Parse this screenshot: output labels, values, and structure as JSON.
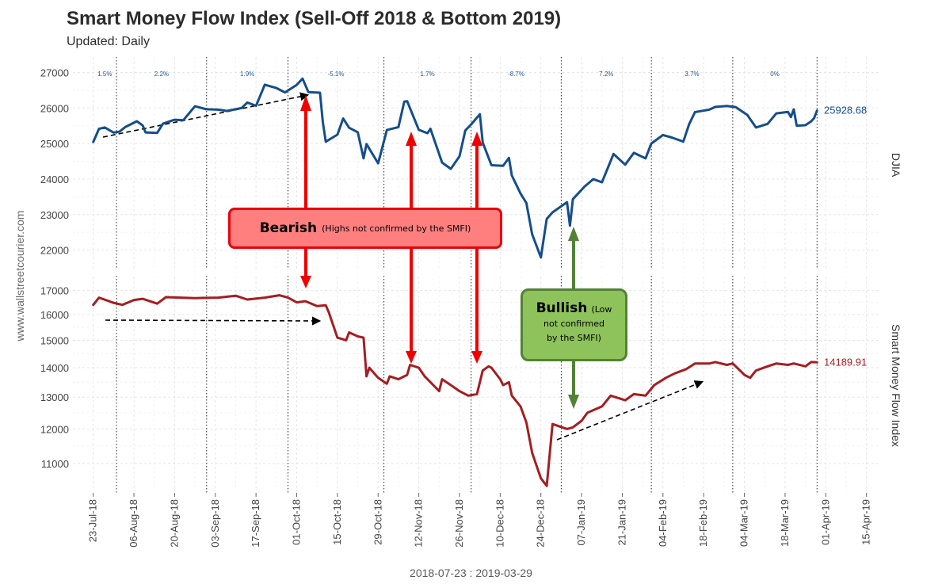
{
  "title": "Smart Money Flow Index (Sell-Off 2018 & Bottom 2019)",
  "subtitle": "Updated: Daily",
  "watermark": "www.wallstreetcourier.com",
  "range_label": "2018-07-23 : 2019-03-29",
  "callouts": {
    "bearish": {
      "title": "Bearish",
      "text": "(Highs not confirmed by the SMFI)"
    },
    "bullish": {
      "title": "Bullish",
      "text_line1": "(Low",
      "text_line2": "not confirmed",
      "text_line3": "by the SMFI)"
    }
  },
  "colors": {
    "djia": "#154e8a",
    "smfi": "#a41e22",
    "bearish_arrow": "#f20000",
    "bullish_arrow": "#538135"
  },
  "chart_data": [
    {
      "type": "line",
      "panel": "DJIA",
      "strip_label": "DJIA",
      "series": [
        {
          "name": "DJIA",
          "color": "#154e8a"
        }
      ],
      "ylim": [
        21500,
        27300
      ],
      "yticks": [
        "22000",
        "23000",
        "24000",
        "25000",
        "26000",
        "27000"
      ],
      "last_value_label": "25928.68",
      "points": [
        [
          "2018-07-23",
          25044
        ],
        [
          "2018-07-25",
          25414
        ],
        [
          "2018-07-27",
          25451
        ],
        [
          "2018-07-30",
          25307
        ],
        [
          "2018-08-01",
          25333
        ],
        [
          "2018-08-03",
          25462
        ],
        [
          "2018-08-07",
          25628
        ],
        [
          "2018-08-09",
          25509
        ],
        [
          "2018-08-10",
          25313
        ],
        [
          "2018-08-14",
          25299
        ],
        [
          "2018-08-16",
          25558
        ],
        [
          "2018-08-20",
          25669
        ],
        [
          "2018-08-23",
          25656
        ],
        [
          "2018-08-27",
          26049
        ],
        [
          "2018-08-31",
          25964
        ],
        [
          "2018-09-04",
          25952
        ],
        [
          "2018-09-07",
          25916
        ],
        [
          "2018-09-12",
          25998
        ],
        [
          "2018-09-14",
          26154
        ],
        [
          "2018-09-17",
          26062
        ],
        [
          "2018-09-20",
          26656
        ],
        [
          "2018-09-24",
          26562
        ],
        [
          "2018-09-27",
          26439
        ],
        [
          "2018-10-01",
          26651
        ],
        [
          "2018-10-03",
          26828
        ],
        [
          "2018-10-05",
          26447
        ],
        [
          "2018-10-09",
          26430
        ],
        [
          "2018-10-10",
          25599
        ],
        [
          "2018-10-11",
          25052
        ],
        [
          "2018-10-15",
          25250
        ],
        [
          "2018-10-17",
          25706
        ],
        [
          "2018-10-19",
          25444
        ],
        [
          "2018-10-22",
          25317
        ],
        [
          "2018-10-24",
          24583
        ],
        [
          "2018-10-25",
          24984
        ],
        [
          "2018-10-29",
          24443
        ],
        [
          "2018-11-01",
          25380
        ],
        [
          "2018-11-05",
          25461
        ],
        [
          "2018-11-07",
          26180
        ],
        [
          "2018-11-08",
          26191
        ],
        [
          "2018-11-12",
          25387
        ],
        [
          "2018-11-15",
          25290
        ],
        [
          "2018-11-16",
          25414
        ],
        [
          "2018-11-20",
          24465
        ],
        [
          "2018-11-23",
          24286
        ],
        [
          "2018-11-26",
          24640
        ],
        [
          "2018-11-28",
          25366
        ],
        [
          "2018-11-30",
          25538
        ],
        [
          "2018-12-03",
          25826
        ],
        [
          "2018-12-04",
          25027
        ],
        [
          "2018-12-07",
          24389
        ],
        [
          "2018-12-11",
          24370
        ],
        [
          "2018-12-13",
          24597
        ],
        [
          "2018-12-14",
          24101
        ],
        [
          "2018-12-17",
          23592
        ],
        [
          "2018-12-19",
          23324
        ],
        [
          "2018-12-21",
          22445
        ],
        [
          "2018-12-24",
          21792
        ],
        [
          "2018-12-26",
          22878
        ],
        [
          "2018-12-28",
          23062
        ],
        [
          "2019-01-02",
          23346
        ],
        [
          "2019-01-03",
          22686
        ],
        [
          "2019-01-04",
          23433
        ],
        [
          "2019-01-08",
          23787
        ],
        [
          "2019-01-11",
          23996
        ],
        [
          "2019-01-14",
          23910
        ],
        [
          "2019-01-18",
          24706
        ],
        [
          "2019-01-22",
          24404
        ],
        [
          "2019-01-25",
          24737
        ],
        [
          "2019-01-29",
          24580
        ],
        [
          "2019-01-31",
          24999
        ],
        [
          "2019-02-04",
          25239
        ],
        [
          "2019-02-07",
          25169
        ],
        [
          "2019-02-11",
          25053
        ],
        [
          "2019-02-13",
          25543
        ],
        [
          "2019-02-15",
          25883
        ],
        [
          "2019-02-20",
          25954
        ],
        [
          "2019-02-22",
          26031
        ],
        [
          "2019-02-26",
          26057
        ],
        [
          "2019-03-01",
          26026
        ],
        [
          "2019-03-05",
          25806
        ],
        [
          "2019-03-08",
          25450
        ],
        [
          "2019-03-12",
          25554
        ],
        [
          "2019-03-15",
          25848
        ],
        [
          "2019-03-19",
          25887
        ],
        [
          "2019-03-20",
          25745
        ],
        [
          "2019-03-21",
          25962
        ],
        [
          "2019-03-22",
          25502
        ],
        [
          "2019-03-25",
          25516
        ],
        [
          "2019-03-27",
          25625
        ],
        [
          "2019-03-28",
          25717
        ],
        [
          "2019-03-29",
          25929
        ]
      ],
      "period_change_labels": [
        "1.5%",
        "2.2%",
        "1.9%",
        "-5.1%",
        "1.7%",
        "-8.7%",
        "7.2%",
        "3.7%",
        "0%"
      ]
    },
    {
      "type": "line",
      "panel": "Smart Money Flow Index",
      "strip_label": "Smart Money Flow Index",
      "series": [
        {
          "name": "Smart Money Flow Index",
          "color": "#a41e22"
        }
      ],
      "ylim": [
        10300,
        17400
      ],
      "scale": "log",
      "yticks": [
        "11000",
        "12000",
        "13000",
        "14000",
        "15000",
        "16000",
        "17000"
      ],
      "last_value_label": "14189.91",
      "points": [
        [
          "2018-07-23",
          16400
        ],
        [
          "2018-07-25",
          16700
        ],
        [
          "2018-07-30",
          16480
        ],
        [
          "2018-08-02",
          16400
        ],
        [
          "2018-08-06",
          16600
        ],
        [
          "2018-08-09",
          16650
        ],
        [
          "2018-08-14",
          16450
        ],
        [
          "2018-08-17",
          16720
        ],
        [
          "2018-08-22",
          16700
        ],
        [
          "2018-08-27",
          16680
        ],
        [
          "2018-09-04",
          16700
        ],
        [
          "2018-09-10",
          16780
        ],
        [
          "2018-09-14",
          16620
        ],
        [
          "2018-09-20",
          16700
        ],
        [
          "2018-09-25",
          16800
        ],
        [
          "2018-09-28",
          16700
        ],
        [
          "2018-10-01",
          16500
        ],
        [
          "2018-10-04",
          16550
        ],
        [
          "2018-10-08",
          16350
        ],
        [
          "2018-10-11",
          16380
        ],
        [
          "2018-10-12",
          16100
        ],
        [
          "2018-10-15",
          15100
        ],
        [
          "2018-10-18",
          15000
        ],
        [
          "2018-10-19",
          15300
        ],
        [
          "2018-10-22",
          15150
        ],
        [
          "2018-10-24",
          15100
        ],
        [
          "2018-10-25",
          13700
        ],
        [
          "2018-10-26",
          14000
        ],
        [
          "2018-10-29",
          13650
        ],
        [
          "2018-11-01",
          13450
        ],
        [
          "2018-11-02",
          13700
        ],
        [
          "2018-11-05",
          13600
        ],
        [
          "2018-11-08",
          13750
        ],
        [
          "2018-11-09",
          14100
        ],
        [
          "2018-11-12",
          14000
        ],
        [
          "2018-11-14",
          13700
        ],
        [
          "2018-11-16",
          13500
        ],
        [
          "2018-11-19",
          13200
        ],
        [
          "2018-11-20",
          13600
        ],
        [
          "2018-11-23",
          13400
        ],
        [
          "2018-11-26",
          13200
        ],
        [
          "2018-11-29",
          13050
        ],
        [
          "2018-12-02",
          13100
        ],
        [
          "2018-12-04",
          13900
        ],
        [
          "2018-12-06",
          14050
        ],
        [
          "2018-12-07",
          14000
        ],
        [
          "2018-12-10",
          13600
        ],
        [
          "2018-12-11",
          13400
        ],
        [
          "2018-12-13",
          13500
        ],
        [
          "2018-12-14",
          13050
        ],
        [
          "2018-12-17",
          12700
        ],
        [
          "2018-12-19",
          12200
        ],
        [
          "2018-12-21",
          11300
        ],
        [
          "2018-12-24",
          10600
        ],
        [
          "2018-12-26",
          10400
        ],
        [
          "2018-12-28",
          12150
        ],
        [
          "2019-01-02",
          12000
        ],
        [
          "2019-01-04",
          12050
        ],
        [
          "2019-01-07",
          12250
        ],
        [
          "2019-01-09",
          12500
        ],
        [
          "2019-01-14",
          12700
        ],
        [
          "2019-01-17",
          13050
        ],
        [
          "2019-01-22",
          12900
        ],
        [
          "2019-01-25",
          13100
        ],
        [
          "2019-01-29",
          13050
        ],
        [
          "2019-02-01",
          13400
        ],
        [
          "2019-02-05",
          13650
        ],
        [
          "2019-02-08",
          13800
        ],
        [
          "2019-02-12",
          13950
        ],
        [
          "2019-02-15",
          14150
        ],
        [
          "2019-02-20",
          14150
        ],
        [
          "2019-02-22",
          14200
        ],
        [
          "2019-02-26",
          14100
        ],
        [
          "2019-02-28",
          14150
        ],
        [
          "2019-03-04",
          13750
        ],
        [
          "2019-03-06",
          13650
        ],
        [
          "2019-03-08",
          13900
        ],
        [
          "2019-03-12",
          14050
        ],
        [
          "2019-03-15",
          14150
        ],
        [
          "2019-03-19",
          14100
        ],
        [
          "2019-03-21",
          14150
        ],
        [
          "2019-03-25",
          14050
        ],
        [
          "2019-03-27",
          14200
        ],
        [
          "2019-03-29",
          14190
        ]
      ]
    }
  ],
  "x_axis": {
    "range": [
      "2018-07-16",
      "2019-04-20"
    ],
    "tick_dates": [
      "2018-07-23",
      "2018-08-06",
      "2018-08-20",
      "2018-09-03",
      "2018-09-17",
      "2018-10-01",
      "2018-10-15",
      "2018-10-29",
      "2018-11-12",
      "2018-11-26",
      "2018-12-10",
      "2018-12-24",
      "2019-01-07",
      "2019-01-21",
      "2019-02-04",
      "2019-02-18",
      "2019-03-04",
      "2019-03-18",
      "2019-04-01",
      "2019-04-15"
    ],
    "tick_labels": [
      "23-Jul-18",
      "06-Aug-18",
      "20-Aug-18",
      "03-Sep-18",
      "17-Sep-18",
      "01-Oct-18",
      "15-Oct-18",
      "29-Oct-18",
      "12-Nov-18",
      "26-Nov-18",
      "10-Dec-18",
      "24-Dec-18",
      "07-Jan-19",
      "21-Jan-19",
      "04-Feb-19",
      "18-Feb-19",
      "04-Mar-19",
      "18-Mar-19",
      "01-Apr-19",
      "15-Apr-19"
    ],
    "period_separators": [
      "2018-07-31",
      "2018-08-31",
      "2018-09-28",
      "2018-10-31",
      "2018-11-30",
      "2018-12-31",
      "2019-01-31",
      "2019-02-28",
      "2019-03-29"
    ]
  }
}
